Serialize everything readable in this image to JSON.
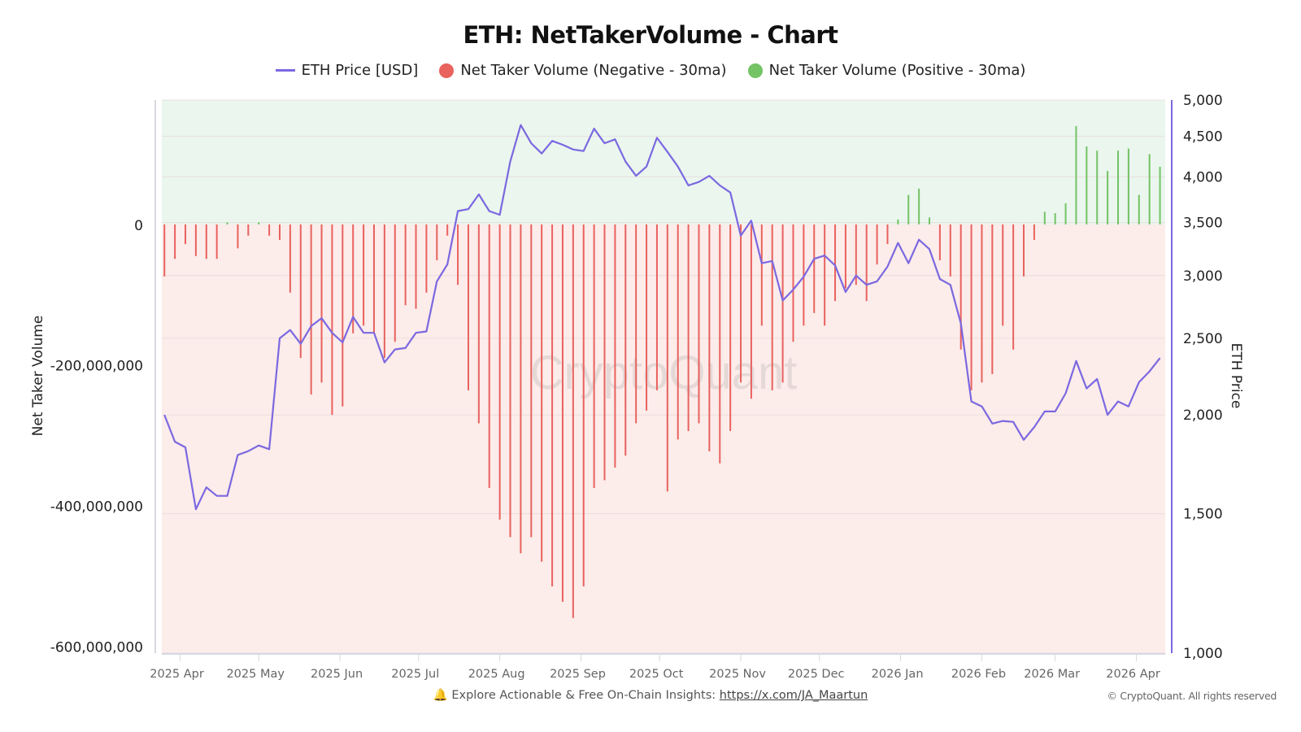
{
  "chart_data": {
    "type": "bar+line",
    "title": "ETH: NetTakerVolume - Chart",
    "ylabel_left": "Net Taker Volume",
    "ylabel_right": "ETH Price",
    "ylim_left": [
      -610000000,
      177000000
    ],
    "ylim_right": [
      1000,
      5000
    ],
    "right_scale": "log",
    "xlim": [
      "2025-03-25",
      "2026-04-12"
    ],
    "grid": true,
    "legend_placement": "top",
    "left_ticks": [
      {
        "v": 0,
        "label": "0"
      },
      {
        "v": -200000000,
        "label": "-200,000,000"
      },
      {
        "v": -400000000,
        "label": "-400,000,000"
      },
      {
        "v": -600000000,
        "label": "-600,000,000"
      }
    ],
    "right_ticks": [
      {
        "v": 5000,
        "label": "5,000"
      },
      {
        "v": 4500,
        "label": "4,500"
      },
      {
        "v": 4000,
        "label": "4,000"
      },
      {
        "v": 3500,
        "label": "3,500"
      },
      {
        "v": 3000,
        "label": "3,000"
      },
      {
        "v": 2500,
        "label": "2,500"
      },
      {
        "v": 2000,
        "label": "2,000"
      },
      {
        "v": 1500,
        "label": "1,500"
      },
      {
        "v": 1000,
        "label": "1,000"
      }
    ],
    "x_ticks": [
      {
        "date": "2025-04-01",
        "label": "2025 Apr"
      },
      {
        "date": "2025-05-01",
        "label": "2025 May"
      },
      {
        "date": "2025-06-01",
        "label": "2025 Jun"
      },
      {
        "date": "2025-07-01",
        "label": "2025 Jul"
      },
      {
        "date": "2025-08-01",
        "label": "2025 Aug"
      },
      {
        "date": "2025-09-01",
        "label": "2025 Sep"
      },
      {
        "date": "2025-10-01",
        "label": "2025 Oct"
      },
      {
        "date": "2025-11-01",
        "label": "2025 Nov"
      },
      {
        "date": "2025-12-01",
        "label": "2025 Dec"
      },
      {
        "date": "2026-01-01",
        "label": "2026 Jan"
      },
      {
        "date": "2026-02-01",
        "label": "2026 Feb"
      },
      {
        "date": "2026-03-01",
        "label": "2026 Mar"
      },
      {
        "date": "2026-04-01",
        "label": "2026 Apr"
      }
    ],
    "dates": [
      "2025-03-26",
      "2025-03-30",
      "2025-04-03",
      "2025-04-07",
      "2025-04-11",
      "2025-04-15",
      "2025-04-19",
      "2025-04-23",
      "2025-04-27",
      "2025-05-01",
      "2025-05-05",
      "2025-05-09",
      "2025-05-13",
      "2025-05-17",
      "2025-05-21",
      "2025-05-25",
      "2025-05-29",
      "2025-06-02",
      "2025-06-06",
      "2025-06-10",
      "2025-06-14",
      "2025-06-18",
      "2025-06-22",
      "2025-06-26",
      "2025-06-30",
      "2025-07-04",
      "2025-07-08",
      "2025-07-12",
      "2025-07-16",
      "2025-07-20",
      "2025-07-24",
      "2025-07-28",
      "2025-08-01",
      "2025-08-05",
      "2025-08-09",
      "2025-08-13",
      "2025-08-17",
      "2025-08-21",
      "2025-08-25",
      "2025-08-29",
      "2025-09-02",
      "2025-09-06",
      "2025-09-10",
      "2025-09-14",
      "2025-09-18",
      "2025-09-22",
      "2025-09-26",
      "2025-09-30",
      "2025-10-04",
      "2025-10-08",
      "2025-10-12",
      "2025-10-16",
      "2025-10-20",
      "2025-10-24",
      "2025-10-28",
      "2025-11-01",
      "2025-11-05",
      "2025-11-09",
      "2025-11-13",
      "2025-11-17",
      "2025-11-21",
      "2025-11-25",
      "2025-11-29",
      "2025-12-03",
      "2025-12-07",
      "2025-12-11",
      "2025-12-15",
      "2025-12-19",
      "2025-12-23",
      "2025-12-27",
      "2025-12-31",
      "2026-01-04",
      "2026-01-08",
      "2026-01-12",
      "2026-01-16",
      "2026-01-20",
      "2026-01-24",
      "2026-01-28",
      "2026-02-01",
      "2026-02-05",
      "2026-02-09",
      "2026-02-13",
      "2026-02-17",
      "2026-02-21",
      "2026-02-25",
      "2026-03-01",
      "2026-03-05",
      "2026-03-09",
      "2026-03-13",
      "2026-03-17",
      "2026-03-21",
      "2026-03-25",
      "2026-03-29",
      "2026-04-02",
      "2026-04-06",
      "2026-04-10"
    ],
    "series": [
      {
        "name": "ETH Price [USD]",
        "type": "line",
        "axis": "right",
        "color": "#7b68e0",
        "values": [
          2000,
          1850,
          1820,
          1520,
          1620,
          1580,
          1580,
          1780,
          1800,
          1830,
          1810,
          2500,
          2560,
          2460,
          2590,
          2650,
          2540,
          2470,
          2660,
          2540,
          2540,
          2330,
          2420,
          2430,
          2540,
          2550,
          2950,
          3100,
          3620,
          3640,
          3800,
          3620,
          3580,
          4180,
          4650,
          4410,
          4280,
          4440,
          4390,
          4330,
          4310,
          4600,
          4410,
          4460,
          4180,
          4010,
          4120,
          4480,
          4300,
          4120,
          3900,
          3940,
          4010,
          3900,
          3820,
          3370,
          3520,
          3110,
          3130,
          2790,
          2880,
          2990,
          3150,
          3180,
          3090,
          2860,
          3000,
          2920,
          2950,
          3080,
          3300,
          3110,
          3330,
          3240,
          2970,
          2920,
          2610,
          2080,
          2050,
          1950,
          1965,
          1960,
          1860,
          1930,
          2020,
          2020,
          2130,
          2340,
          2160,
          2220,
          2000,
          2080,
          2050,
          2200,
          2270,
          2360
        ]
      },
      {
        "name": "Net Taker Volume",
        "type": "bar",
        "axis": "left",
        "legend_negative": "Net Taker Volume (Negative - 30ma)",
        "legend_positive": "Net Taker Volume (Positive - 30ma)",
        "color_negative": "#e8625e",
        "color_positive": "#74c365",
        "values": [
          -74000000,
          -49000000,
          -28000000,
          -45000000,
          -49000000,
          -49000000,
          3000000,
          -34000000,
          -16000000,
          3000000,
          -16000000,
          -22000000,
          -97000000,
          -190000000,
          -242000000,
          -225000000,
          -271000000,
          -259000000,
          -155000000,
          -144000000,
          -155000000,
          -190000000,
          -167000000,
          -115000000,
          -120000000,
          -97000000,
          -51000000,
          -16000000,
          -86000000,
          -236000000,
          -283000000,
          -375000000,
          -420000000,
          -445000000,
          -468000000,
          -445000000,
          -480000000,
          -515000000,
          -537000000,
          -560000000,
          -515000000,
          -375000000,
          -364000000,
          -346000000,
          -329000000,
          -283000000,
          -265000000,
          -236000000,
          -380000000,
          -306000000,
          -294000000,
          -283000000,
          -323000000,
          -340000000,
          -294000000,
          -225000000,
          -248000000,
          -144000000,
          -236000000,
          -225000000,
          -167000000,
          -144000000,
          -126000000,
          -144000000,
          -109000000,
          -91000000,
          -86000000,
          -109000000,
          -57000000,
          -28000000,
          7000000,
          42000000,
          51000000,
          10000000,
          -51000000,
          -74000000,
          -178000000,
          -236000000,
          -225000000,
          -213000000,
          -144000000,
          -178000000,
          -74000000,
          -22000000,
          18000000,
          16000000,
          30000000,
          140000000,
          111000000,
          105000000,
          76000000,
          105000000,
          108000000,
          42000000,
          100000000,
          82000000
        ]
      }
    ],
    "background_positive": "#eaf6ee",
    "background_negative": "#fcecea"
  },
  "watermark": "CryptoQuant",
  "footer": {
    "icon": "bell-icon",
    "text": "Explore Actionable & Free On-Chain Insights: ",
    "link": "https://x.com/JA_Maartun"
  },
  "copyright": "© CryptoQuant. All rights reserved"
}
